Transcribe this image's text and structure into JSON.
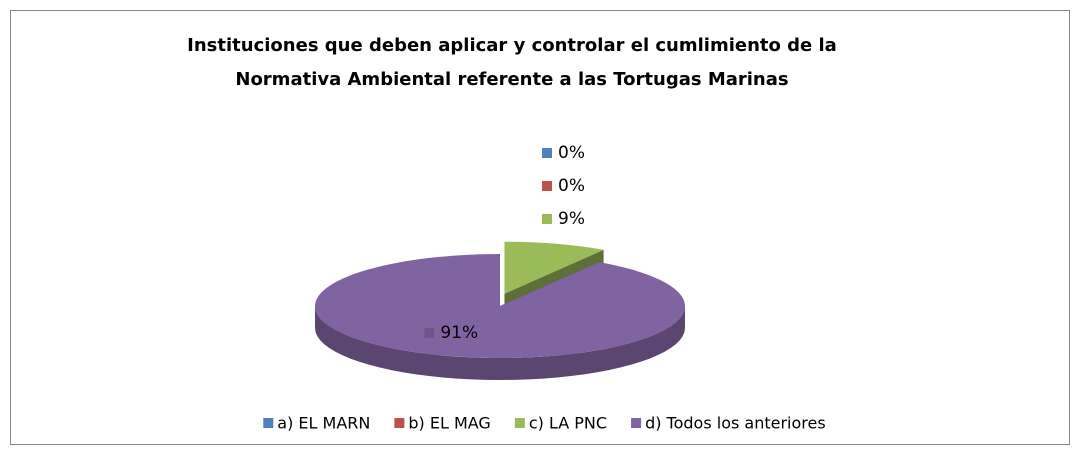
{
  "chart_data": {
    "type": "pie3d",
    "title": [
      "Instituciones que deben aplicar y controlar el cumlimiento de la",
      "Normativa Ambiental referente a las Tortugas Marinas"
    ],
    "categories": [
      "a) EL MARN",
      "b) EL MAG",
      "c) LA PNC",
      "d) Todos los anteriores"
    ],
    "values": [
      0,
      0,
      9,
      91
    ],
    "value_labels": [
      "0%",
      "0%",
      "9%",
      "91%"
    ],
    "colors": [
      "#4f81bd",
      "#c0504d",
      "#9bbb59",
      "#8064a2"
    ],
    "legend": "bottom"
  }
}
